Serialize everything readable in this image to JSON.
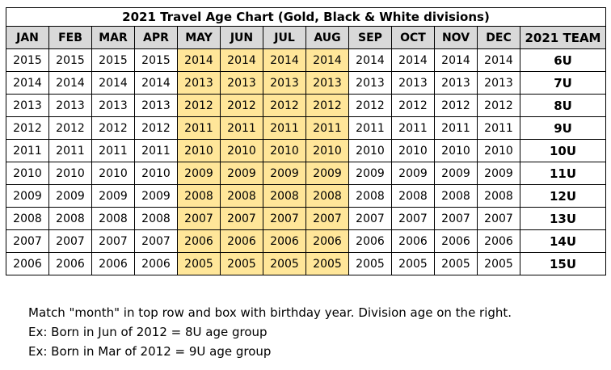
{
  "title": "2021 Travel Age Chart (Gold, Black & White divisions)",
  "columns": [
    "JAN",
    "FEB",
    "MAR",
    "APR",
    "MAY",
    "JUN",
    "JUL",
    "AUG",
    "SEP",
    "OCT",
    "NOV",
    "DEC",
    "2021 TEAM"
  ],
  "highlight_color": "#ffe699",
  "header_color": "#d9d9d9",
  "highlighted_months": [
    "MAY",
    "JUN",
    "JUL",
    "AUG"
  ],
  "rows": [
    {
      "years": [
        "2015",
        "2015",
        "2015",
        "2015",
        "2014",
        "2014",
        "2014",
        "2014",
        "2014",
        "2014",
        "2014",
        "2014"
      ],
      "team": "6U"
    },
    {
      "years": [
        "2014",
        "2014",
        "2014",
        "2014",
        "2013",
        "2013",
        "2013",
        "2013",
        "2013",
        "2013",
        "2013",
        "2013"
      ],
      "team": "7U"
    },
    {
      "years": [
        "2013",
        "2013",
        "2013",
        "2013",
        "2012",
        "2012",
        "2012",
        "2012",
        "2012",
        "2012",
        "2012",
        "2012"
      ],
      "team": "8U"
    },
    {
      "years": [
        "2012",
        "2012",
        "2012",
        "2012",
        "2011",
        "2011",
        "2011",
        "2011",
        "2011",
        "2011",
        "2011",
        "2011"
      ],
      "team": "9U"
    },
    {
      "years": [
        "2011",
        "2011",
        "2011",
        "2011",
        "2010",
        "2010",
        "2010",
        "2010",
        "2010",
        "2010",
        "2010",
        "2010"
      ],
      "team": "10U"
    },
    {
      "years": [
        "2010",
        "2010",
        "2010",
        "2010",
        "2009",
        "2009",
        "2009",
        "2009",
        "2009",
        "2009",
        "2009",
        "2009"
      ],
      "team": "11U"
    },
    {
      "years": [
        "2009",
        "2009",
        "2009",
        "2009",
        "2008",
        "2008",
        "2008",
        "2008",
        "2008",
        "2008",
        "2008",
        "2008"
      ],
      "team": "12U"
    },
    {
      "years": [
        "2008",
        "2008",
        "2008",
        "2008",
        "2007",
        "2007",
        "2007",
        "2007",
        "2007",
        "2007",
        "2007",
        "2007"
      ],
      "team": "13U"
    },
    {
      "years": [
        "2007",
        "2007",
        "2007",
        "2007",
        "2006",
        "2006",
        "2006",
        "2006",
        "2006",
        "2006",
        "2006",
        "2006"
      ],
      "team": "14U"
    },
    {
      "years": [
        "2006",
        "2006",
        "2006",
        "2006",
        "2005",
        "2005",
        "2005",
        "2005",
        "2005",
        "2005",
        "2005",
        "2005"
      ],
      "team": "15U"
    }
  ],
  "notes": [
    "Match \"month\" in top row and box with birthday year.  Division age on the right.",
    "Ex:  Born in Jun of 2012 = 8U age group",
    "Ex:  Born in Mar of 2012 = 9U age group"
  ]
}
